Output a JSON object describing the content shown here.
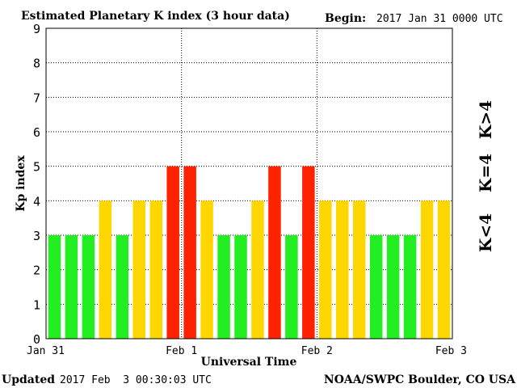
{
  "header": {
    "title": "Estimated Planetary K index (3 hour data)",
    "begin_label": "Begin:",
    "begin_value": "2017 Jan 31 0000 UTC"
  },
  "footer": {
    "updated_label": "Updated",
    "updated_value": "2017 Feb  3 00:30:03 UTC",
    "source": "NOAA/SWPC Boulder, CO USA"
  },
  "legend": {
    "low": "K<4",
    "mid": "K=4",
    "high": "K>4"
  },
  "colors": {
    "low": "#22ee22",
    "mid": "#ffd700",
    "high": "#ff2200"
  },
  "chart_data": {
    "type": "bar",
    "title": "Estimated Planetary K index (3 hour data)",
    "xlabel": "Universal Time",
    "ylabel": "Kp index",
    "ylim": [
      0,
      9
    ],
    "yticks": [
      0,
      1,
      2,
      3,
      4,
      5,
      6,
      7,
      8,
      9
    ],
    "xticks": [
      "Jan 31",
      "Feb 1",
      "Feb 2",
      "Feb 3"
    ],
    "interval_hours": 3,
    "grid": true,
    "values": [
      3,
      3,
      3,
      4,
      3,
      4,
      4,
      5,
      5,
      4,
      3,
      3,
      4,
      5,
      3,
      5,
      4,
      4,
      4,
      3,
      3,
      3,
      4,
      4
    ]
  }
}
